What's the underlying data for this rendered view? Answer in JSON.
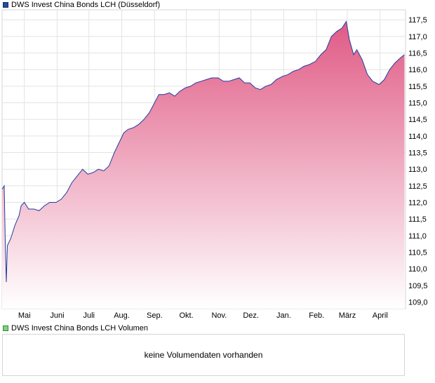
{
  "price_legend": {
    "label": "DWS Invest China Bonds LCH (Düsseldorf)",
    "color": "#1f4e9e"
  },
  "volume_legend": {
    "label": "DWS Invest China Bonds LCH Volumen",
    "color": "#7fd17f"
  },
  "volume_message": "keine Volumendaten vorhanden",
  "colors": {
    "line": "#1f3f9e",
    "fill_top": "#e05a85",
    "fill_bottom": "#ffffff",
    "grid": "#e3e3e3"
  },
  "chart_data": {
    "type": "area",
    "title": "DWS Invest China Bonds LCH (Düsseldorf)",
    "xlabel": "",
    "ylabel": "",
    "ylim": [
      108.8,
      117.8
    ],
    "grid": true,
    "y_axis_position": "right",
    "y_ticks": [
      {
        "value": 109.0,
        "label": "109,0"
      },
      {
        "value": 109.5,
        "label": "109,5"
      },
      {
        "value": 110.0,
        "label": "110,0"
      },
      {
        "value": 110.5,
        "label": "110,5"
      },
      {
        "value": 111.0,
        "label": "111,0"
      },
      {
        "value": 111.5,
        "label": "111,5"
      },
      {
        "value": 112.0,
        "label": "112,0"
      },
      {
        "value": 112.5,
        "label": "112,5"
      },
      {
        "value": 113.0,
        "label": "113,0"
      },
      {
        "value": 113.5,
        "label": "113,5"
      },
      {
        "value": 114.0,
        "label": "114,0"
      },
      {
        "value": 114.5,
        "label": "114,5"
      },
      {
        "value": 115.0,
        "label": "115,0"
      },
      {
        "value": 115.5,
        "label": "115,5"
      },
      {
        "value": 116.0,
        "label": "116,0"
      },
      {
        "value": 116.5,
        "label": "116,5"
      },
      {
        "value": 117.0,
        "label": "117,0"
      },
      {
        "value": 117.5,
        "label": "117,5"
      }
    ],
    "x_range": [
      "2023-04-10",
      "2024-04-25"
    ],
    "x_ticks": [
      {
        "date": "2023-05-01",
        "label": "Mai"
      },
      {
        "date": "2023-06-01",
        "label": "Juni"
      },
      {
        "date": "2023-07-01",
        "label": "Juli"
      },
      {
        "date": "2023-08-01",
        "label": "Aug."
      },
      {
        "date": "2023-09-01",
        "label": "Sep."
      },
      {
        "date": "2023-10-01",
        "label": "Okt."
      },
      {
        "date": "2023-11-01",
        "label": "Nov."
      },
      {
        "date": "2023-12-01",
        "label": "Dez."
      },
      {
        "date": "2024-01-01",
        "label": "Jan."
      },
      {
        "date": "2024-02-01",
        "label": "Feb."
      },
      {
        "date": "2024-03-01",
        "label": "März"
      },
      {
        "date": "2024-04-01",
        "label": "April"
      }
    ],
    "series": [
      {
        "name": "DWS Invest China Bonds LCH",
        "x": [
          "2023-04-10",
          "2023-04-12",
          "2023-04-13",
          "2023-04-14",
          "2023-04-15",
          "2023-04-18",
          "2023-04-22",
          "2023-04-26",
          "2023-04-28",
          "2023-05-01",
          "2023-05-05",
          "2023-05-10",
          "2023-05-15",
          "2023-05-20",
          "2023-05-25",
          "2023-05-31",
          "2023-06-05",
          "2023-06-10",
          "2023-06-15",
          "2023-06-20",
          "2023-06-25",
          "2023-06-30",
          "2023-07-05",
          "2023-07-10",
          "2023-07-15",
          "2023-07-20",
          "2023-07-25",
          "2023-07-31",
          "2023-08-03",
          "2023-08-07",
          "2023-08-12",
          "2023-08-17",
          "2023-08-22",
          "2023-08-27",
          "2023-09-01",
          "2023-09-05",
          "2023-09-10",
          "2023-09-15",
          "2023-09-20",
          "2023-09-25",
          "2023-09-30",
          "2023-10-05",
          "2023-10-10",
          "2023-10-15",
          "2023-10-20",
          "2023-10-25",
          "2023-10-31",
          "2023-11-05",
          "2023-11-10",
          "2023-11-15",
          "2023-11-20",
          "2023-11-25",
          "2023-11-30",
          "2023-12-05",
          "2023-12-10",
          "2023-12-15",
          "2023-12-20",
          "2023-12-25",
          "2023-12-31",
          "2024-01-05",
          "2024-01-10",
          "2024-01-15",
          "2024-01-20",
          "2024-01-25",
          "2024-01-31",
          "2024-02-05",
          "2024-02-10",
          "2024-02-15",
          "2024-02-20",
          "2024-02-25",
          "2024-02-29",
          "2024-03-03",
          "2024-03-07",
          "2024-03-10",
          "2024-03-15",
          "2024-03-20",
          "2024-03-25",
          "2024-03-31",
          "2024-04-05",
          "2024-04-10",
          "2024-04-15",
          "2024-04-20",
          "2024-04-24"
        ],
        "values": [
          112.4,
          112.5,
          110.8,
          109.6,
          110.7,
          110.9,
          111.3,
          111.6,
          111.9,
          112.0,
          111.8,
          111.8,
          111.75,
          111.9,
          112.0,
          112.0,
          112.1,
          112.3,
          112.6,
          112.8,
          113.0,
          112.85,
          112.9,
          113.0,
          112.95,
          113.1,
          113.5,
          113.9,
          114.1,
          114.2,
          114.25,
          114.35,
          114.5,
          114.7,
          115.0,
          115.25,
          115.25,
          115.3,
          115.2,
          115.35,
          115.45,
          115.5,
          115.6,
          115.65,
          115.7,
          115.75,
          115.75,
          115.65,
          115.65,
          115.7,
          115.75,
          115.6,
          115.6,
          115.45,
          115.4,
          115.5,
          115.55,
          115.7,
          115.8,
          115.85,
          115.95,
          116.0,
          116.1,
          116.15,
          116.25,
          116.45,
          116.6,
          117.0,
          117.15,
          117.25,
          117.45,
          116.9,
          116.45,
          116.6,
          116.3,
          115.85,
          115.65,
          115.55,
          115.7,
          116.0,
          116.2,
          116.35,
          116.45
        ]
      }
    ]
  }
}
